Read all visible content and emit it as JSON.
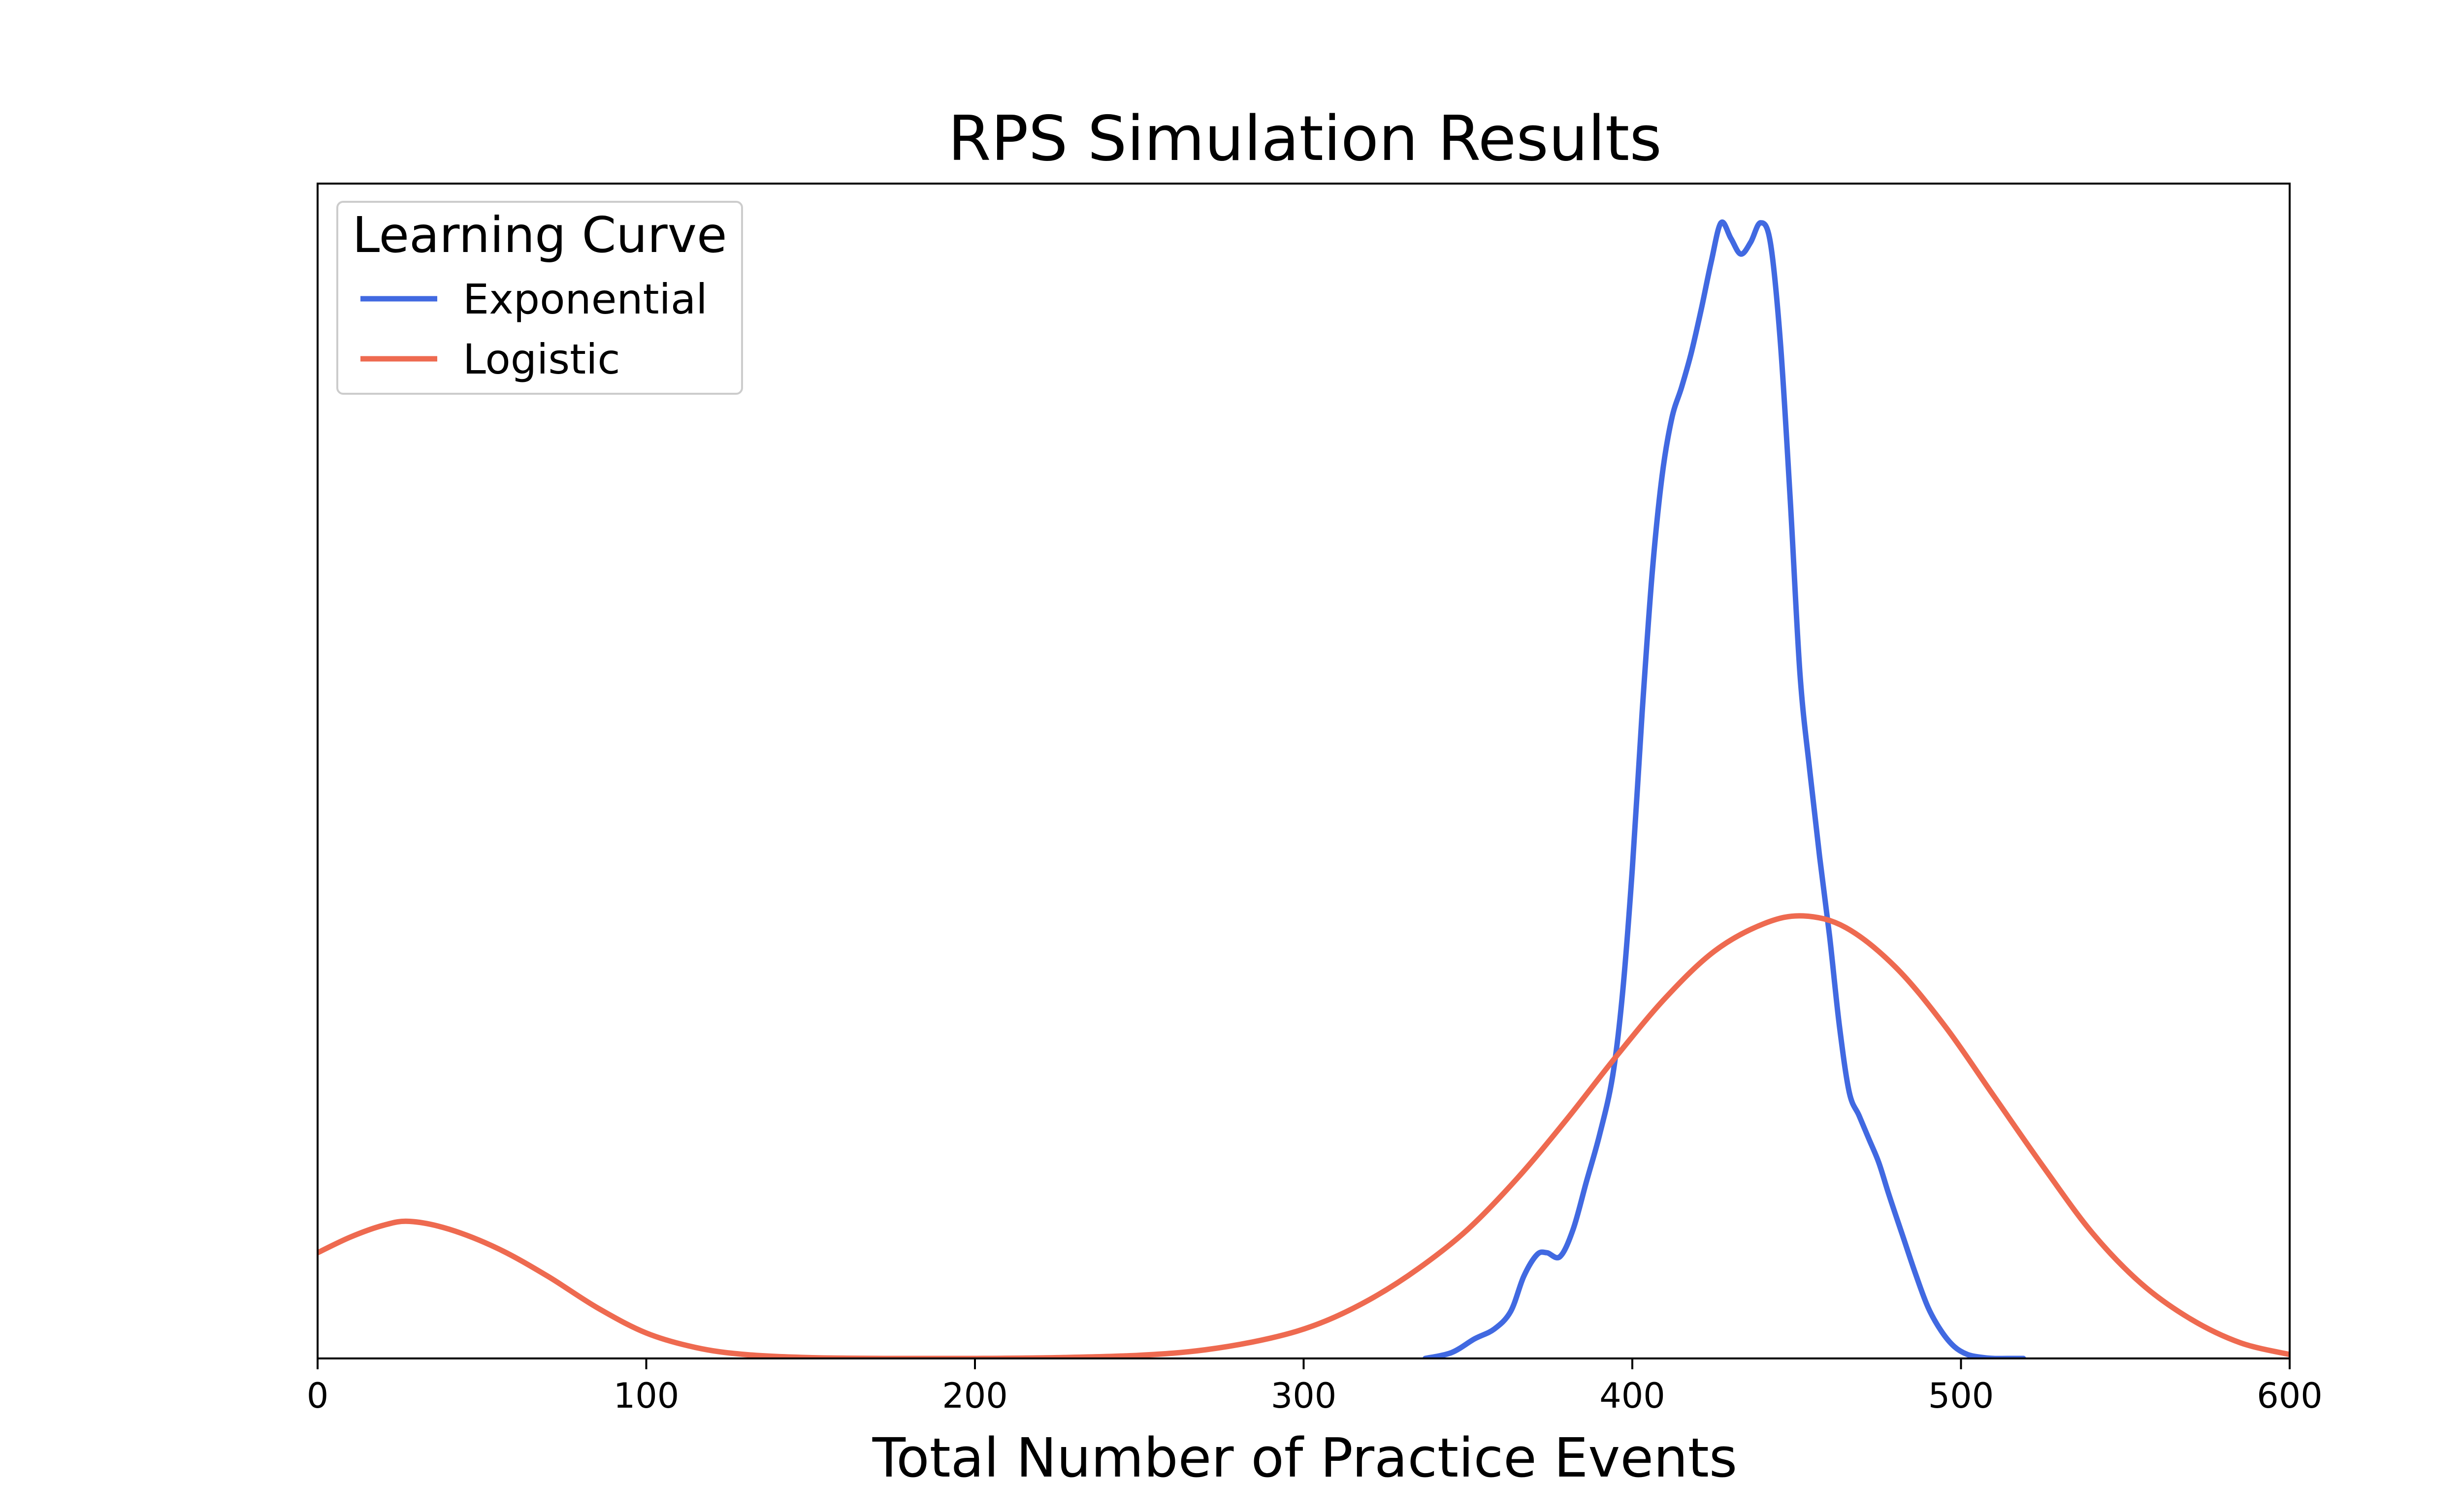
{
  "chart_data": {
    "type": "line",
    "title": "RPS Simulation Results",
    "xlabel": "Total Number of Practice Events",
    "ylabel": "",
    "xlim": [
      0,
      600
    ],
    "ylim": [
      0,
      0.03
    ],
    "xticks": [
      0,
      100,
      200,
      300,
      400,
      500,
      600
    ],
    "xtick_labels": [
      "0",
      "100",
      "200",
      "300",
      "400",
      "500",
      "600"
    ],
    "yticks_visible": false,
    "grid": false,
    "legend": {
      "title": "Learning Curve",
      "placement": "top-left",
      "entries": [
        "Exponential",
        "Logistic"
      ]
    },
    "series": [
      {
        "name": "Exponential",
        "color": "#4169e1",
        "x": [
          337,
          345,
          352,
          358,
          363,
          367,
          371,
          374,
          378,
          382,
          386,
          390,
          394,
          397,
          400,
          403,
          406,
          409,
          412,
          415,
          418,
          421,
          424,
          427,
          430,
          433,
          436,
          439,
          442,
          445,
          448,
          451,
          454,
          457,
          460,
          463,
          466,
          469,
          472,
          475,
          478,
          482,
          486,
          490,
          494,
          498,
          502,
          506,
          510,
          514,
          519
        ],
        "y": [
          0.0,
          0.00015,
          0.0005,
          0.00075,
          0.0012,
          0.0021,
          0.00265,
          0.0027,
          0.0026,
          0.0033,
          0.0045,
          0.0057,
          0.0072,
          0.0093,
          0.0125,
          0.0165,
          0.02,
          0.0225,
          0.024,
          0.0248,
          0.0257,
          0.0268,
          0.028,
          0.029,
          0.0286,
          0.0282,
          0.0285,
          0.029,
          0.0285,
          0.026,
          0.022,
          0.0175,
          0.015,
          0.0128,
          0.0108,
          0.0085,
          0.0068,
          0.0062,
          0.0056,
          0.005,
          0.0042,
          0.0032,
          0.0022,
          0.0013,
          0.0007,
          0.0003,
          0.0001,
          3e-05,
          0.0,
          0.0,
          0.0
        ]
      },
      {
        "name": "Logistic",
        "color": "#ee6a50",
        "x": [
          0,
          10,
          20,
          28,
          40,
          55,
          70,
          85,
          100,
          115,
          130,
          150,
          175,
          200,
          225,
          250,
          270,
          290,
          305,
          320,
          335,
          350,
          365,
          380,
          395,
          410,
          425,
          440,
          452,
          465,
          480,
          495,
          510,
          525,
          540,
          555,
          570,
          585,
          600
        ],
        "y": [
          0.0027,
          0.0031,
          0.0034,
          0.0035,
          0.0033,
          0.0028,
          0.0021,
          0.0013,
          0.00065,
          0.00028,
          0.0001,
          2e-05,
          0.0,
          0.0,
          2e-05,
          8e-05,
          0.00022,
          0.00052,
          0.0009,
          0.0015,
          0.0023,
          0.0033,
          0.0046,
          0.0061,
          0.0077,
          0.0092,
          0.0104,
          0.0111,
          0.0113,
          0.011,
          0.01,
          0.0085,
          0.0067,
          0.0049,
          0.0032,
          0.0019,
          0.001,
          0.0004,
          0.0001
        ]
      }
    ]
  }
}
